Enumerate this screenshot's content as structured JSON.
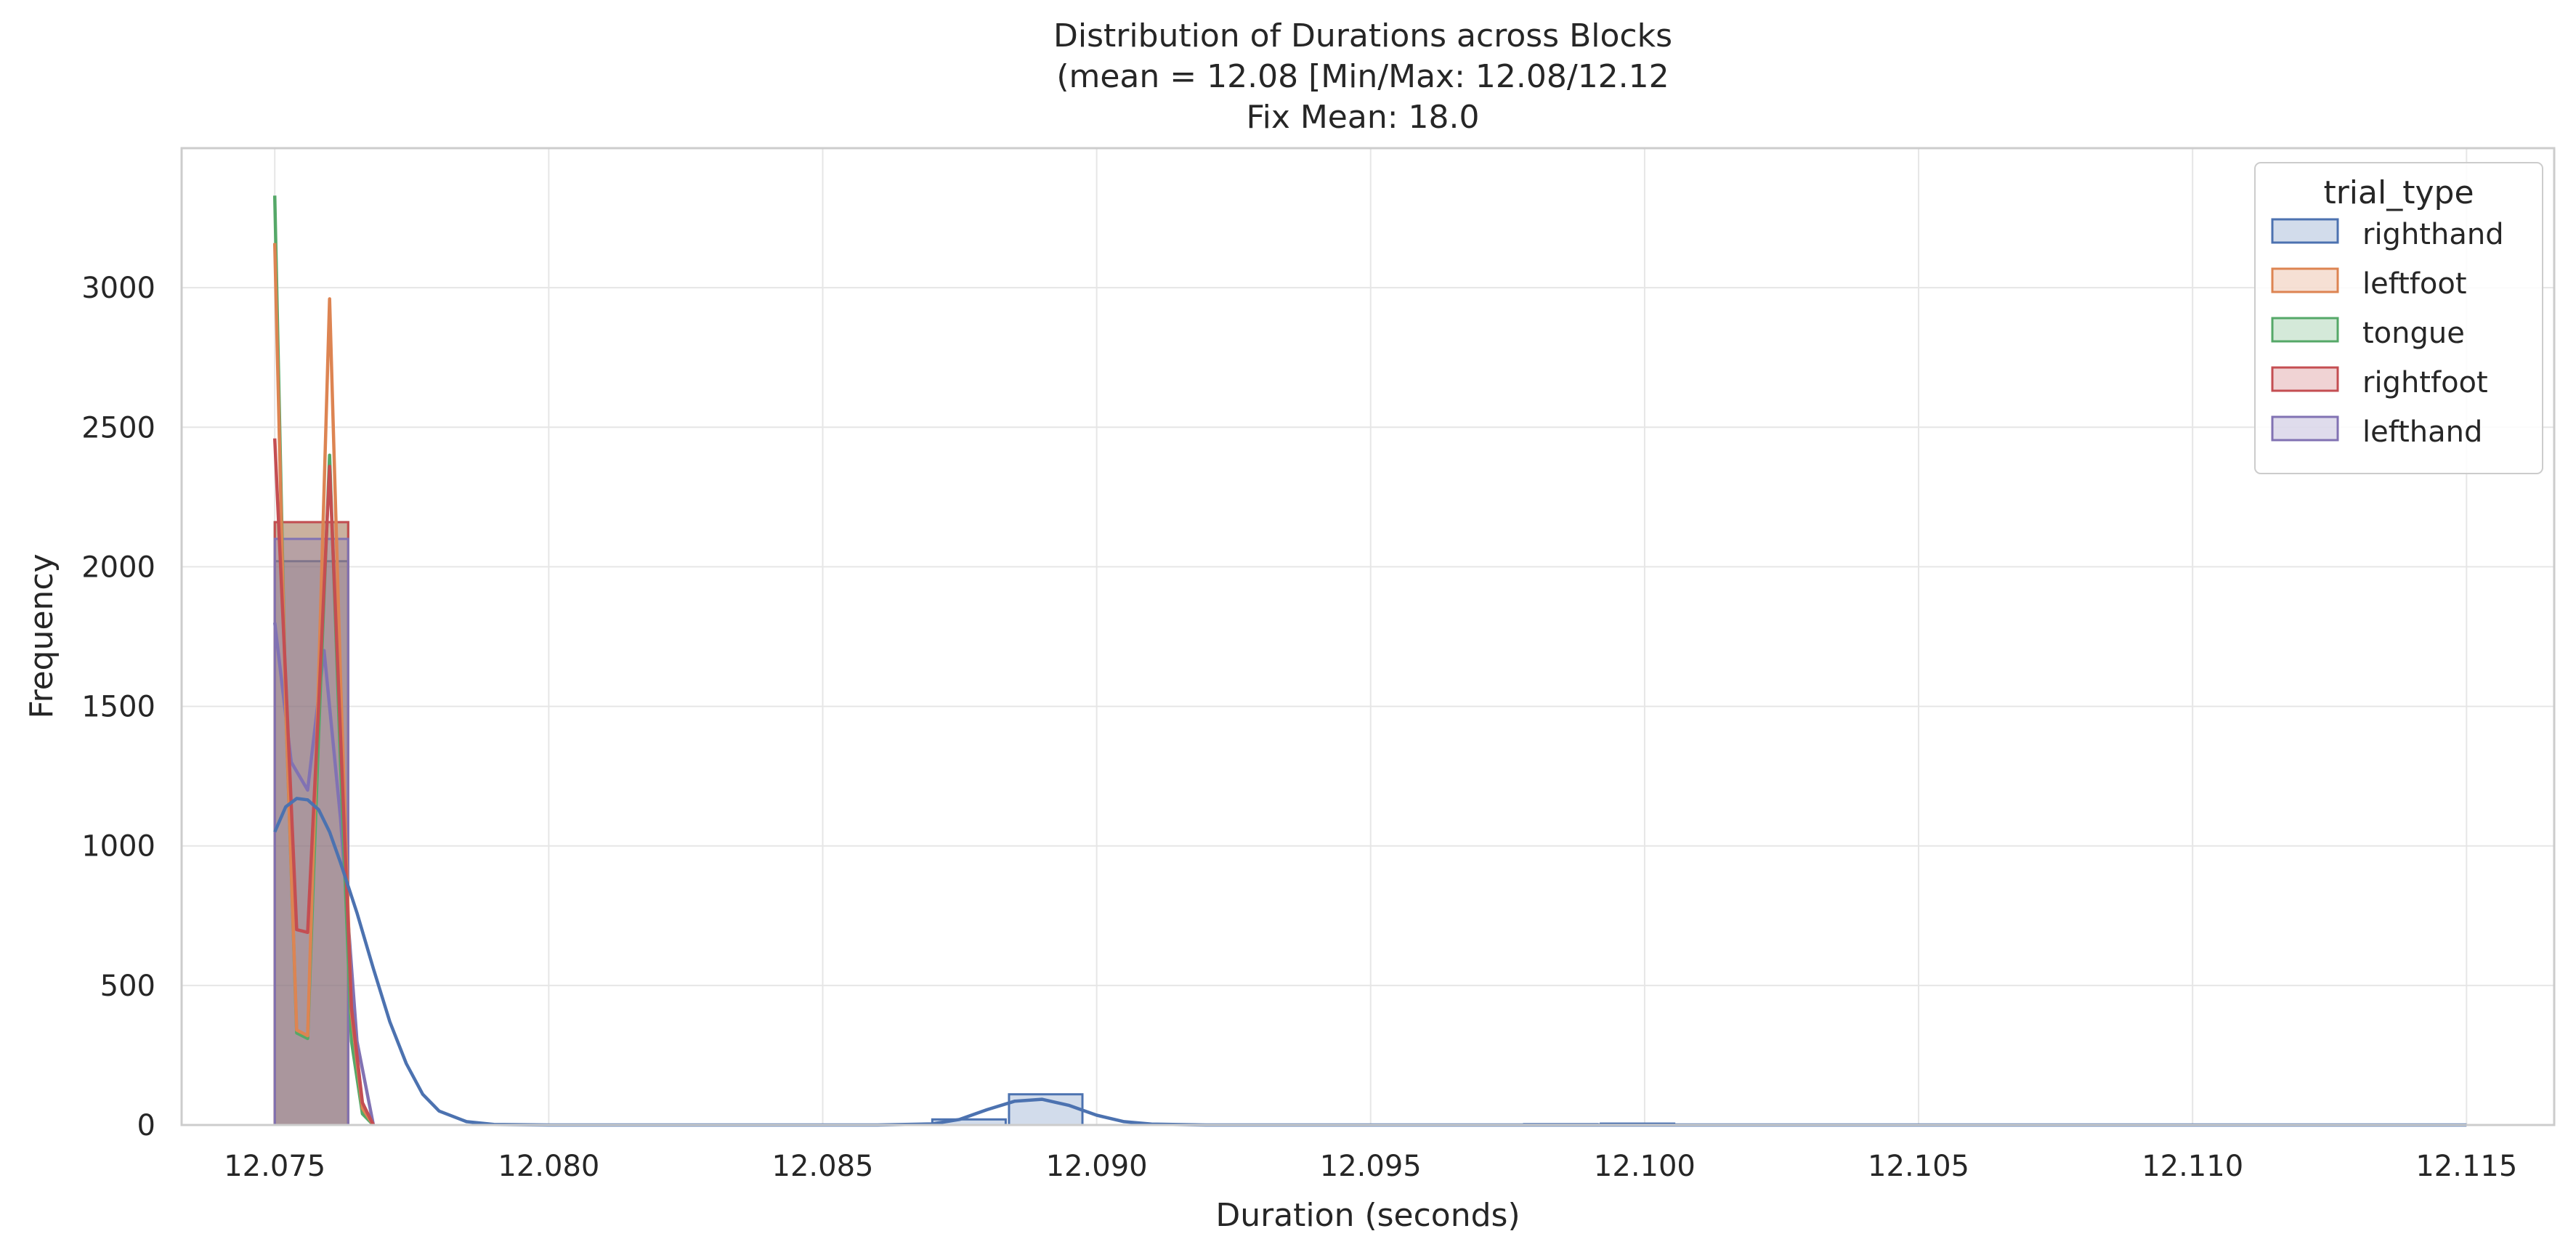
{
  "chart_data": {
    "type": "bar",
    "title": [
      "Distribution of Durations across Blocks",
      "(mean = 12.08 [Min/Max: 12.08/12.12",
      "Fix Mean: 18.0"
    ],
    "xlabel": "Duration (seconds)",
    "ylabel": "Frequency",
    "xlim": [
      12.0733,
      12.1166
    ],
    "ylim": [
      0,
      3500
    ],
    "xticks": [
      12.075,
      12.08,
      12.085,
      12.09,
      12.095,
      12.1,
      12.105,
      12.11,
      12.115
    ],
    "xtick_labels": [
      "12.075",
      "12.080",
      "12.085",
      "12.090",
      "12.095",
      "12.100",
      "12.105",
      "12.110",
      "12.115"
    ],
    "yticks": [
      0,
      500,
      1000,
      1500,
      2000,
      2500,
      3000
    ],
    "ytick_labels": [
      "0",
      "500",
      "1000",
      "1500",
      "2000",
      "2500",
      "3000"
    ],
    "grid": true,
    "legend": {
      "title": "trial_type",
      "placement": "top-right"
    },
    "bin_width": 0.00134,
    "series": [
      {
        "name": "righthand",
        "color": "#4c72b0",
        "bins": [
          [
            12.075,
            2020
          ],
          [
            12.087,
            20
          ],
          [
            12.0884,
            110
          ],
          [
            12.0978,
            3
          ],
          [
            12.0992,
            5
          ]
        ],
        "kde": [
          [
            12.075,
            1050
          ],
          [
            12.0752,
            1140
          ],
          [
            12.0754,
            1170
          ],
          [
            12.0756,
            1165
          ],
          [
            12.0758,
            1130
          ],
          [
            12.076,
            1050
          ],
          [
            12.0762,
            940
          ],
          [
            12.0765,
            760
          ],
          [
            12.0768,
            560
          ],
          [
            12.0771,
            370
          ],
          [
            12.0774,
            220
          ],
          [
            12.0777,
            110
          ],
          [
            12.078,
            50
          ],
          [
            12.0785,
            12
          ],
          [
            12.079,
            2
          ],
          [
            12.08,
            0
          ],
          [
            12.086,
            0
          ],
          [
            12.087,
            4
          ],
          [
            12.0875,
            20
          ],
          [
            12.088,
            55
          ],
          [
            12.0885,
            85
          ],
          [
            12.089,
            92
          ],
          [
            12.0895,
            70
          ],
          [
            12.09,
            35
          ],
          [
            12.0905,
            12
          ],
          [
            12.091,
            3
          ],
          [
            12.092,
            0
          ],
          [
            12.115,
            0
          ]
        ]
      },
      {
        "name": "leftfoot",
        "color": "#dd8452",
        "bins": [
          [
            12.075,
            2160
          ]
        ],
        "kde": [
          [
            12.075,
            3160
          ],
          [
            12.0752,
            1500
          ],
          [
            12.0754,
            340
          ],
          [
            12.0756,
            320
          ],
          [
            12.0758,
            1600
          ],
          [
            12.076,
            2960
          ],
          [
            12.0762,
            1600
          ],
          [
            12.0764,
            400
          ],
          [
            12.0766,
            60
          ],
          [
            12.0768,
            0
          ]
        ]
      },
      {
        "name": "tongue",
        "color": "#55a868",
        "bins": [
          [
            12.075,
            2160
          ]
        ],
        "kde": [
          [
            12.075,
            3330
          ],
          [
            12.0752,
            1500
          ],
          [
            12.0754,
            330
          ],
          [
            12.0756,
            310
          ],
          [
            12.0758,
            1400
          ],
          [
            12.076,
            2400
          ],
          [
            12.0762,
            1300
          ],
          [
            12.0764,
            300
          ],
          [
            12.0766,
            40
          ],
          [
            12.0768,
            0
          ]
        ]
      },
      {
        "name": "rightfoot",
        "color": "#c44e52",
        "bins": [
          [
            12.075,
            2160
          ]
        ],
        "kde": [
          [
            12.075,
            2460
          ],
          [
            12.0752,
            1600
          ],
          [
            12.0754,
            700
          ],
          [
            12.0756,
            690
          ],
          [
            12.0758,
            1500
          ],
          [
            12.076,
            2360
          ],
          [
            12.0762,
            1400
          ],
          [
            12.0764,
            420
          ],
          [
            12.0766,
            80
          ],
          [
            12.0768,
            0
          ]
        ]
      },
      {
        "name": "lefthand",
        "color": "#8172b3",
        "bins": [
          [
            12.075,
            2100
          ]
        ],
        "kde": [
          [
            12.075,
            1800
          ],
          [
            12.0753,
            1300
          ],
          [
            12.0756,
            1200
          ],
          [
            12.0759,
            1700
          ],
          [
            12.0762,
            1100
          ],
          [
            12.0765,
            300
          ],
          [
            12.0768,
            0
          ]
        ]
      }
    ]
  }
}
